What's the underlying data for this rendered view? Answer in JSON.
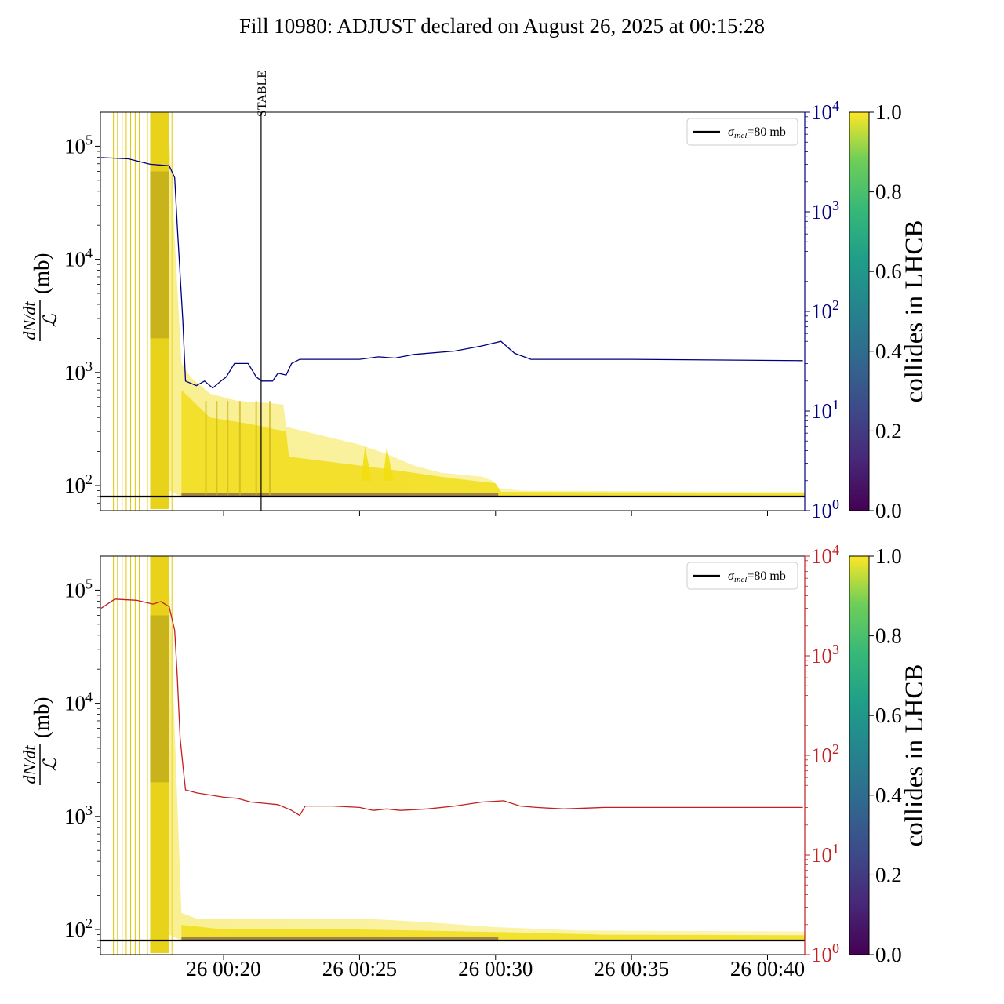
{
  "title": "Fill 10980: ADJUST declared on August 26, 2025 at 00:15:28",
  "chart_data": [
    {
      "type": "line",
      "panel": "top",
      "ylabel": "dN/dt / ℒ (mb)",
      "yscale": "log",
      "ylim": [
        60,
        200000
      ],
      "y_ticks": [
        {
          "v": 100,
          "base": "10",
          "exp": "2"
        },
        {
          "v": 1000,
          "base": "10",
          "exp": "3"
        },
        {
          "v": 10000,
          "base": "10",
          "exp": "4"
        },
        {
          "v": 100000,
          "base": "10",
          "exp": "5"
        }
      ],
      "y2_color": "#00007f",
      "y2scale": "log",
      "y2lim": [
        1,
        10000
      ],
      "y2_ticks": [
        {
          "v": 1,
          "base": "10",
          "exp": "0"
        },
        {
          "v": 10,
          "base": "10",
          "exp": "1"
        },
        {
          "v": 100,
          "base": "10",
          "exp": "2"
        },
        {
          "v": 1000,
          "base": "10",
          "exp": "3"
        },
        {
          "v": 10000,
          "base": "10",
          "exp": "4"
        }
      ],
      "xlim_minutes_after_midnight": [
        15.47,
        41.37
      ],
      "x_ticks": [
        {
          "m": 20,
          "label": ""
        },
        {
          "m": 25,
          "label": ""
        },
        {
          "m": 30,
          "label": ""
        },
        {
          "m": 35,
          "label": ""
        },
        {
          "m": 40,
          "label": ""
        }
      ],
      "vline": {
        "m": 21.38,
        "label": "STABLE"
      },
      "legend": {
        "position": "top-right",
        "label_main": "σ",
        "label_sub": "inel",
        "label_rest": "=80 mb"
      },
      "hline_value_mb": 80,
      "right_axis_series": [
        [
          15.5,
          3500
        ],
        [
          16.5,
          3400
        ],
        [
          17.3,
          3000
        ],
        [
          18.0,
          2900
        ],
        [
          18.2,
          2200
        ],
        [
          18.3,
          700
        ],
        [
          18.5,
          80
        ],
        [
          18.6,
          20
        ],
        [
          19.0,
          18
        ],
        [
          19.3,
          20
        ],
        [
          19.6,
          17
        ],
        [
          19.9,
          20
        ],
        [
          20.1,
          22
        ],
        [
          20.4,
          30
        ],
        [
          20.9,
          30
        ],
        [
          21.2,
          22
        ],
        [
          21.4,
          20
        ],
        [
          21.8,
          20
        ],
        [
          22.0,
          24
        ],
        [
          22.3,
          23
        ],
        [
          22.5,
          30
        ],
        [
          22.8,
          33
        ],
        [
          25.0,
          33
        ],
        [
          25.7,
          35
        ],
        [
          26.3,
          34
        ],
        [
          27.0,
          37
        ],
        [
          28.5,
          40
        ],
        [
          29.5,
          45
        ],
        [
          30.2,
          50
        ],
        [
          30.7,
          38
        ],
        [
          31.3,
          33
        ],
        [
          35.0,
          33
        ],
        [
          41.3,
          32
        ]
      ],
      "colorbar": {
        "label": "collides in LHCB",
        "range": [
          0,
          1
        ],
        "ticks": [
          "0.0",
          "0.2",
          "0.4",
          "0.6",
          "0.8",
          "1.0"
        ]
      }
    },
    {
      "type": "line",
      "panel": "bottom",
      "ylabel": "dN/dt / ℒ (mb)",
      "yscale": "log",
      "ylim": [
        60,
        200000
      ],
      "y_ticks": [
        {
          "v": 100,
          "base": "10",
          "exp": "2"
        },
        {
          "v": 1000,
          "base": "10",
          "exp": "3"
        },
        {
          "v": 10000,
          "base": "10",
          "exp": "4"
        },
        {
          "v": 100000,
          "base": "10",
          "exp": "5"
        }
      ],
      "y2_color": "#c0201f",
      "y2scale": "log",
      "y2lim": [
        1,
        10000
      ],
      "y2_ticks": [
        {
          "v": 1,
          "base": "10",
          "exp": "0"
        },
        {
          "v": 10,
          "base": "10",
          "exp": "1"
        },
        {
          "v": 100,
          "base": "10",
          "exp": "2"
        },
        {
          "v": 1000,
          "base": "10",
          "exp": "3"
        },
        {
          "v": 10000,
          "base": "10",
          "exp": "4"
        }
      ],
      "xlim_minutes_after_midnight": [
        15.47,
        41.37
      ],
      "x_ticks": [
        {
          "m": 20,
          "label": "26 00:20"
        },
        {
          "m": 25,
          "label": "26 00:25"
        },
        {
          "m": 30,
          "label": "26 00:30"
        },
        {
          "m": 35,
          "label": "26 00:35"
        },
        {
          "m": 40,
          "label": "26 00:40"
        }
      ],
      "legend": {
        "position": "top-right",
        "label_main": "σ",
        "label_sub": "inel",
        "label_rest": "=80 mb"
      },
      "hline_value_mb": 80,
      "right_axis_series": [
        [
          15.5,
          3000
        ],
        [
          16.0,
          3700
        ],
        [
          16.8,
          3600
        ],
        [
          17.4,
          3300
        ],
        [
          17.7,
          3500
        ],
        [
          18.0,
          3100
        ],
        [
          18.2,
          1800
        ],
        [
          18.3,
          600
        ],
        [
          18.4,
          150
        ],
        [
          18.5,
          80
        ],
        [
          18.6,
          45
        ],
        [
          19.0,
          42
        ],
        [
          19.5,
          40
        ],
        [
          20.0,
          38
        ],
        [
          20.5,
          37
        ],
        [
          21.0,
          34
        ],
        [
          21.5,
          33
        ],
        [
          22.0,
          32
        ],
        [
          22.5,
          28
        ],
        [
          22.8,
          25
        ],
        [
          23.0,
          31
        ],
        [
          24.0,
          31
        ],
        [
          25.0,
          30
        ],
        [
          25.5,
          28
        ],
        [
          26.0,
          29
        ],
        [
          26.5,
          28
        ],
        [
          27.5,
          29
        ],
        [
          28.5,
          31
        ],
        [
          29.5,
          34
        ],
        [
          30.3,
          35
        ],
        [
          30.9,
          31
        ],
        [
          31.5,
          30
        ],
        [
          32.5,
          29
        ],
        [
          34.0,
          30
        ],
        [
          41.3,
          30
        ]
      ],
      "colorbar": {
        "label": "collides in LHCB",
        "range": [
          0,
          1
        ],
        "ticks": [
          "0.0",
          "0.2",
          "0.4",
          "0.6",
          "0.8",
          "1.0"
        ]
      }
    }
  ]
}
